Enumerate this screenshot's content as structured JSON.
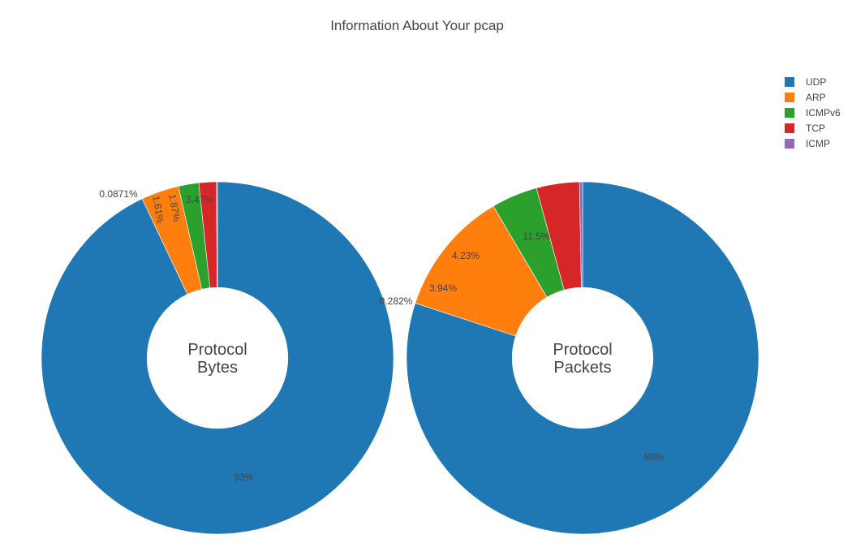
{
  "chart_data": {
    "type": "pie",
    "title": "Information About Your pcap",
    "legend": {
      "placement": "top-right",
      "entries": [
        {
          "name": "UDP",
          "color": "#1f77b4"
        },
        {
          "name": "ARP",
          "color": "#ff7f0e"
        },
        {
          "name": "ICMPv6",
          "color": "#2ca02c"
        },
        {
          "name": "TCP",
          "color": "#d62728"
        },
        {
          "name": "ICMP",
          "color": "#9467bd"
        }
      ]
    },
    "pies": [
      {
        "center_label": [
          "Protocol",
          "Bytes"
        ],
        "hole": 0.4,
        "labels": [
          "UDP",
          "ARP",
          "ICMPv6",
          "TCP",
          "ICMP"
        ],
        "values": [
          93.0,
          3.47,
          1.87,
          1.61,
          0.0871
        ],
        "text": [
          "93%",
          "3.47%",
          "1.87%",
          "1.61%",
          "0.0871%"
        ]
      },
      {
        "center_label": [
          "Protocol",
          "Packets"
        ],
        "hole": 0.4,
        "labels": [
          "UDP",
          "ARP",
          "ICMPv6",
          "TCP",
          "ICMP"
        ],
        "values": [
          80.0,
          11.5,
          4.23,
          3.94,
          0.282
        ],
        "text": [
          "80%",
          "11.5%",
          "4.23%",
          "3.94%",
          "0.282%"
        ]
      }
    ]
  }
}
